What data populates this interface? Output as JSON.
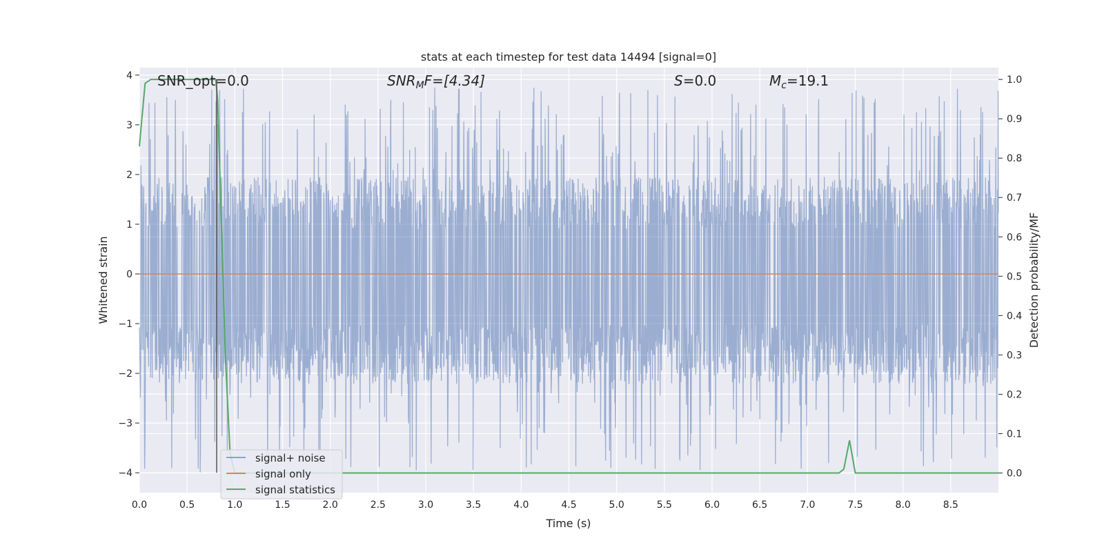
{
  "chart_data": {
    "type": "line",
    "title": "stats at each timestep for test data 14494 [signal=0]",
    "xlabel": "Time (s)",
    "ylabel_left": "Whitened strain",
    "ylabel_right": "Detection probability/MF",
    "xlim": [
      0.0,
      9.0
    ],
    "ylim_left": [
      -4.4,
      4.15
    ],
    "ylim_right": [
      -0.05,
      1.03
    ],
    "xticks": [
      "0.0",
      "0.5",
      "1.0",
      "1.5",
      "2.0",
      "2.5",
      "3.0",
      "3.5",
      "4.0",
      "4.5",
      "5.0",
      "5.5",
      "6.0",
      "6.5",
      "7.0",
      "7.5",
      "8.0",
      "8.5"
    ],
    "yticks_left": [
      "4",
      "3",
      "2",
      "1",
      "0",
      "−1",
      "−2",
      "−3",
      "−4"
    ],
    "yticks_right": [
      "1.0",
      "0.9",
      "0.8",
      "0.7",
      "0.6",
      "0.5",
      "0.4",
      "0.3",
      "0.2",
      "0.1",
      "0.0"
    ],
    "grid": true,
    "legend_position": "lower-left",
    "annotations": {
      "snr_opt": "SNR_opt=0.0",
      "snr_mf_base": "SNR",
      "snr_mf_sub": "M",
      "snr_mf_rest": "F=[4.34]",
      "s_base": "S",
      "s_rest": "=0.0",
      "mc_base": "M",
      "mc_sub": "c",
      "mc_rest": "=19.1"
    },
    "vertical_marker_x": 0.81,
    "series": [
      {
        "name": "signal+ noise",
        "axis": "left",
        "color": "#4c72b0",
        "description_kind": "noise",
        "x_range": [
          0.0,
          9.0
        ],
        "typical_range": [
          -1.7,
          1.5
        ],
        "extreme_range": [
          -4.0,
          3.75
        ]
      },
      {
        "name": "signal only",
        "axis": "left",
        "color": "#dd8452",
        "x": [
          0.0,
          9.0
        ],
        "y": [
          0.0,
          0.0
        ]
      },
      {
        "name": "signal statistics",
        "axis": "right",
        "color": "#55a868",
        "x": [
          0.0,
          0.06,
          0.12,
          0.5,
          0.8,
          0.82,
          0.87,
          0.9,
          0.95,
          1.0,
          7.0,
          7.33,
          7.38,
          7.44,
          7.5,
          7.56,
          9.0
        ],
        "y": [
          0.83,
          0.99,
          1.0,
          1.0,
          1.0,
          0.95,
          0.55,
          0.3,
          0.05,
          0.0,
          0.0,
          0.0,
          0.01,
          0.083,
          0.0,
          0.0,
          0.0
        ]
      }
    ]
  }
}
